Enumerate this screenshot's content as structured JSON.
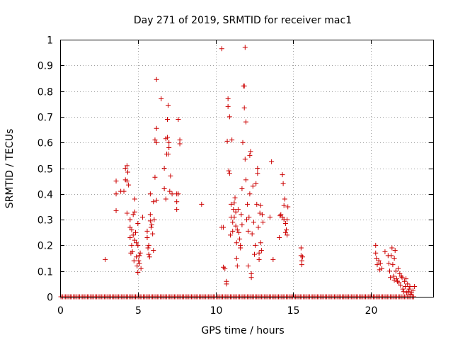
{
  "chart_data": {
    "type": "scatter",
    "title": "Day 271 of 2019, SRMTID for receiver mac1",
    "xlabel": "GPS time / hours",
    "ylabel": "SRMTID / TECUs",
    "xlim": [
      0,
      24
    ],
    "ylim": [
      0,
      1
    ],
    "xticks": [
      0,
      5,
      10,
      15,
      20
    ],
    "xtick_labels": [
      "0",
      "5",
      "10",
      "15",
      "20"
    ],
    "yticks": [
      0,
      0.1,
      0.2,
      0.3,
      0.4,
      0.5,
      0.6,
      0.7,
      0.8,
      0.9,
      1
    ],
    "ytick_labels": [
      "0",
      "0.1",
      "0.2",
      "0.3",
      "0.4",
      "0.5",
      "0.6",
      "0.7",
      "0.8",
      "0.9",
      "1"
    ],
    "grid": true,
    "marker": "+",
    "color": "#cc0000",
    "baseline": {
      "y": 0,
      "x_start": 0.05,
      "x_end": 22.8,
      "step": 0.1
    },
    "series": [
      {
        "name": "SRMTID",
        "points": [
          [
            2.9,
            0.145
          ],
          [
            3.6,
            0.45
          ],
          [
            3.6,
            0.4
          ],
          [
            3.6,
            0.335
          ],
          [
            3.9,
            0.41
          ],
          [
            4.1,
            0.41
          ],
          [
            4.2,
            0.5
          ],
          [
            4.2,
            0.455
          ],
          [
            4.3,
            0.51
          ],
          [
            4.3,
            0.45
          ],
          [
            4.35,
            0.485
          ],
          [
            4.4,
            0.435
          ],
          [
            4.3,
            0.325
          ],
          [
            4.5,
            0.3
          ],
          [
            4.5,
            0.27
          ],
          [
            4.5,
            0.23
          ],
          [
            4.55,
            0.17
          ],
          [
            4.6,
            0.26
          ],
          [
            4.6,
            0.2
          ],
          [
            4.65,
            0.175
          ],
          [
            4.7,
            0.32
          ],
          [
            4.7,
            0.24
          ],
          [
            4.75,
            0.14
          ],
          [
            4.8,
            0.33
          ],
          [
            4.8,
            0.22
          ],
          [
            4.8,
            0.38
          ],
          [
            4.85,
            0.25
          ],
          [
            4.9,
            0.21
          ],
          [
            4.9,
            0.155
          ],
          [
            4.95,
            0.12
          ],
          [
            5.0,
            0.2
          ],
          [
            5.0,
            0.095
          ],
          [
            5.05,
            0.14
          ],
          [
            5.1,
            0.16
          ],
          [
            5.1,
            0.13
          ],
          [
            5.15,
            0.17
          ],
          [
            5.2,
            0.11
          ],
          [
            5.0,
            0.285
          ],
          [
            5.3,
            0.31
          ],
          [
            5.6,
            0.255
          ],
          [
            5.6,
            0.23
          ],
          [
            5.65,
            0.19
          ],
          [
            5.7,
            0.2
          ],
          [
            5.7,
            0.165
          ],
          [
            5.75,
            0.155
          ],
          [
            5.8,
            0.32
          ],
          [
            5.8,
            0.295
          ],
          [
            5.85,
            0.27
          ],
          [
            5.8,
            0.4
          ],
          [
            5.9,
            0.28
          ],
          [
            5.95,
            0.245
          ],
          [
            6.0,
            0.37
          ],
          [
            6.0,
            0.18
          ],
          [
            6.05,
            0.3
          ],
          [
            6.1,
            0.465
          ],
          [
            6.1,
            0.61
          ],
          [
            6.2,
            0.6
          ],
          [
            6.2,
            0.655
          ],
          [
            6.2,
            0.375
          ],
          [
            6.2,
            0.845
          ],
          [
            6.5,
            0.77
          ],
          [
            6.7,
            0.5
          ],
          [
            6.7,
            0.42
          ],
          [
            6.8,
            0.38
          ],
          [
            6.8,
            0.615
          ],
          [
            6.85,
            0.555
          ],
          [
            6.9,
            0.62
          ],
          [
            6.9,
            0.69
          ],
          [
            6.95,
            0.745
          ],
          [
            6.95,
            0.555
          ],
          [
            7.0,
            0.6
          ],
          [
            7.0,
            0.58
          ],
          [
            7.05,
            0.41
          ],
          [
            7.1,
            0.47
          ],
          [
            7.2,
            0.4
          ],
          [
            7.5,
            0.4
          ],
          [
            7.5,
            0.37
          ],
          [
            7.5,
            0.34
          ],
          [
            7.6,
            0.4
          ],
          [
            7.6,
            0.69
          ],
          [
            7.7,
            0.61
          ],
          [
            7.7,
            0.595
          ],
          [
            9.1,
            0.36
          ],
          [
            10.4,
            0.965
          ],
          [
            10.4,
            0.27
          ],
          [
            10.5,
            0.27
          ],
          [
            10.5,
            0.115
          ],
          [
            10.6,
            0.11
          ],
          [
            10.7,
            0.05
          ],
          [
            10.7,
            0.06
          ],
          [
            10.75,
            0.605
          ],
          [
            10.8,
            0.77
          ],
          [
            10.8,
            0.74
          ],
          [
            10.85,
            0.49
          ],
          [
            10.9,
            0.48
          ],
          [
            10.9,
            0.7
          ],
          [
            10.95,
            0.24
          ],
          [
            11.0,
            0.36
          ],
          [
            11.0,
            0.31
          ],
          [
            11.05,
            0.61
          ],
          [
            11.1,
            0.29
          ],
          [
            11.1,
            0.255
          ],
          [
            11.15,
            0.34
          ],
          [
            11.2,
            0.365
          ],
          [
            11.2,
            0.31
          ],
          [
            11.25,
            0.385
          ],
          [
            11.3,
            0.33
          ],
          [
            11.3,
            0.275
          ],
          [
            11.35,
            0.21
          ],
          [
            11.35,
            0.15
          ],
          [
            11.4,
            0.26
          ],
          [
            11.4,
            0.12
          ],
          [
            11.45,
            0.34
          ],
          [
            11.5,
            0.25
          ],
          [
            11.55,
            0.225
          ],
          [
            11.6,
            0.2
          ],
          [
            11.6,
            0.19
          ],
          [
            11.65,
            0.32
          ],
          [
            11.7,
            0.28
          ],
          [
            11.7,
            0.42
          ],
          [
            11.75,
            0.6
          ],
          [
            11.8,
            0.82
          ],
          [
            11.85,
            0.82
          ],
          [
            11.85,
            0.735
          ],
          [
            11.9,
            0.535
          ],
          [
            11.95,
            0.68
          ],
          [
            11.95,
            0.455
          ],
          [
            11.9,
            0.97
          ],
          [
            12.0,
            0.3
          ],
          [
            12.05,
            0.36
          ],
          [
            12.1,
            0.12
          ],
          [
            12.1,
            0.255
          ],
          [
            12.15,
            0.31
          ],
          [
            12.2,
            0.4
          ],
          [
            12.2,
            0.55
          ],
          [
            12.25,
            0.565
          ],
          [
            12.3,
            0.09
          ],
          [
            12.3,
            0.075
          ],
          [
            12.35,
            0.245
          ],
          [
            12.4,
            0.43
          ],
          [
            12.45,
            0.29
          ],
          [
            12.5,
            0.165
          ],
          [
            12.55,
            0.2
          ],
          [
            12.6,
            0.44
          ],
          [
            12.65,
            0.36
          ],
          [
            12.7,
            0.48
          ],
          [
            12.7,
            0.5
          ],
          [
            12.75,
            0.27
          ],
          [
            12.8,
            0.17
          ],
          [
            12.8,
            0.145
          ],
          [
            12.85,
            0.325
          ],
          [
            12.9,
            0.355
          ],
          [
            12.9,
            0.21
          ],
          [
            12.95,
            0.18
          ],
          [
            13.0,
            0.32
          ],
          [
            13.05,
            0.29
          ],
          [
            13.5,
            0.31
          ],
          [
            13.6,
            0.525
          ],
          [
            13.7,
            0.145
          ],
          [
            14.1,
            0.23
          ],
          [
            14.15,
            0.315
          ],
          [
            14.2,
            0.32
          ],
          [
            14.3,
            0.475
          ],
          [
            14.3,
            0.31
          ],
          [
            14.35,
            0.44
          ],
          [
            14.4,
            0.355
          ],
          [
            14.4,
            0.3
          ],
          [
            14.45,
            0.38
          ],
          [
            14.5,
            0.285
          ],
          [
            14.5,
            0.25
          ],
          [
            14.55,
            0.26
          ],
          [
            14.6,
            0.3
          ],
          [
            14.6,
            0.24
          ],
          [
            14.65,
            0.35
          ],
          [
            15.5,
            0.19
          ],
          [
            15.5,
            0.16
          ],
          [
            15.55,
            0.14
          ],
          [
            15.55,
            0.125
          ],
          [
            15.6,
            0.155
          ],
          [
            20.3,
            0.2
          ],
          [
            20.3,
            0.17
          ],
          [
            20.35,
            0.15
          ],
          [
            20.4,
            0.125
          ],
          [
            20.5,
            0.14
          ],
          [
            20.55,
            0.105
          ],
          [
            20.6,
            0.13
          ],
          [
            20.7,
            0.11
          ],
          [
            20.9,
            0.175
          ],
          [
            21.1,
            0.16
          ],
          [
            21.15,
            0.13
          ],
          [
            21.2,
            0.1
          ],
          [
            21.25,
            0.075
          ],
          [
            21.3,
            0.16
          ],
          [
            21.35,
            0.19
          ],
          [
            21.4,
            0.125
          ],
          [
            21.45,
            0.08
          ],
          [
            21.5,
            0.15
          ],
          [
            21.5,
            0.065
          ],
          [
            21.55,
            0.18
          ],
          [
            21.6,
            0.1
          ],
          [
            21.65,
            0.07
          ],
          [
            21.7,
            0.06
          ],
          [
            21.75,
            0.11
          ],
          [
            21.8,
            0.055
          ],
          [
            21.85,
            0.09
          ],
          [
            21.9,
            0.045
          ],
          [
            21.95,
            0.08
          ],
          [
            22.0,
            0.075
          ],
          [
            22.05,
            0.03
          ],
          [
            22.1,
            0.02
          ],
          [
            22.15,
            0.06
          ],
          [
            22.2,
            0.04
          ],
          [
            22.25,
            0.07
          ],
          [
            22.3,
            0.015
          ],
          [
            22.35,
            0.05
          ],
          [
            22.4,
            0.02
          ],
          [
            22.45,
            0.03
          ],
          [
            22.5,
            0.04
          ],
          [
            22.55,
            0.01
          ],
          [
            22.6,
            0.015
          ],
          [
            22.7,
            0.025
          ],
          [
            22.8,
            0.04
          ]
        ]
      }
    ]
  }
}
